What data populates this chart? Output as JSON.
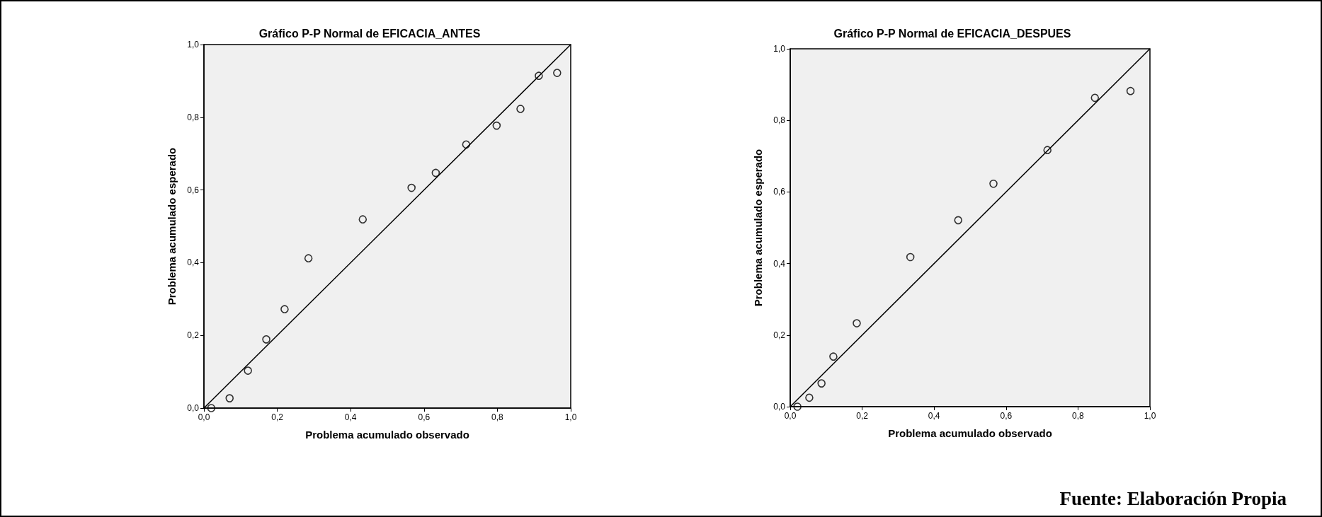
{
  "chart_data": [
    {
      "type": "scatter",
      "title": "Gráfico P-P Normal de EFICACIA_ANTES",
      "xlabel": "Problema acumulado observado",
      "ylabel": "Problema acumulado esperado",
      "series": [
        {
          "type": "scatter",
          "color": "#000000",
          "marker": "circle",
          "x": [
            0.02,
            0.07,
            0.12,
            0.17,
            0.22,
            0.285,
            0.433,
            0.566,
            0.632,
            0.715,
            0.798,
            0.863,
            0.913,
            0.963
          ],
          "values": [
            0.0,
            0.027,
            0.103,
            0.189,
            0.272,
            0.412,
            0.519,
            0.606,
            0.647,
            0.725,
            0.777,
            0.823,
            0.914,
            0.922
          ]
        },
        {
          "type": "line",
          "color": "#000000",
          "marker": "none",
          "x": [
            0,
            1
          ],
          "values": [
            0,
            1
          ]
        }
      ],
      "xlim": [
        0,
        1
      ],
      "ylim": [
        0,
        1
      ],
      "xticks": [
        {
          "value": 0,
          "label": "0,0"
        },
        {
          "value": 0.2,
          "label": "0,2"
        },
        {
          "value": 0.4,
          "label": "0,4"
        },
        {
          "value": 0.6,
          "label": "0,6"
        },
        {
          "value": 0.8,
          "label": "0,8"
        },
        {
          "value": 1,
          "label": "1,0"
        }
      ],
      "yticks": [
        {
          "value": 0,
          "label": "0,0"
        },
        {
          "value": 0.2,
          "label": "0,2"
        },
        {
          "value": 0.4,
          "label": "0,4"
        },
        {
          "value": 0.6,
          "label": "0,6"
        },
        {
          "value": 0.8,
          "label": "0,8"
        },
        {
          "value": 1,
          "label": "1,0"
        }
      ],
      "grid": false
    },
    {
      "type": "scatter",
      "title": "Gráfico P-P Normal de EFICACIA_DESPUES",
      "xlabel": "Problema acumulado observado",
      "ylabel": "Problema acumulado esperado",
      "series": [
        {
          "type": "scatter",
          "color": "#000000",
          "marker": "circle",
          "x": [
            0.02,
            0.053,
            0.087,
            0.12,
            0.185,
            0.334,
            0.467,
            0.565,
            0.715,
            0.847,
            0.946
          ],
          "values": [
            0.0,
            0.025,
            0.065,
            0.14,
            0.233,
            0.418,
            0.521,
            0.623,
            0.717,
            0.863,
            0.882
          ]
        },
        {
          "type": "line",
          "color": "#000000",
          "marker": "none",
          "x": [
            0,
            1
          ],
          "values": [
            0,
            1
          ]
        }
      ],
      "xlim": [
        0,
        1
      ],
      "ylim": [
        0,
        1
      ],
      "xticks": [
        {
          "value": 0,
          "label": "0,0"
        },
        {
          "value": 0.2,
          "label": "0,2"
        },
        {
          "value": 0.4,
          "label": "0,4"
        },
        {
          "value": 0.6,
          "label": "0,6"
        },
        {
          "value": 0.8,
          "label": "0,8"
        },
        {
          "value": 1,
          "label": "1,0"
        }
      ],
      "yticks": [
        {
          "value": 0,
          "label": "0,0"
        },
        {
          "value": 0.2,
          "label": "0,2"
        },
        {
          "value": 0.4,
          "label": "0,4"
        },
        {
          "value": 0.6,
          "label": "0,6"
        },
        {
          "value": 0.8,
          "label": "0,8"
        },
        {
          "value": 1,
          "label": "1,0"
        }
      ],
      "grid": false,
      "annotations": [
        "Fuente: Elaboración Propia"
      ]
    }
  ]
}
